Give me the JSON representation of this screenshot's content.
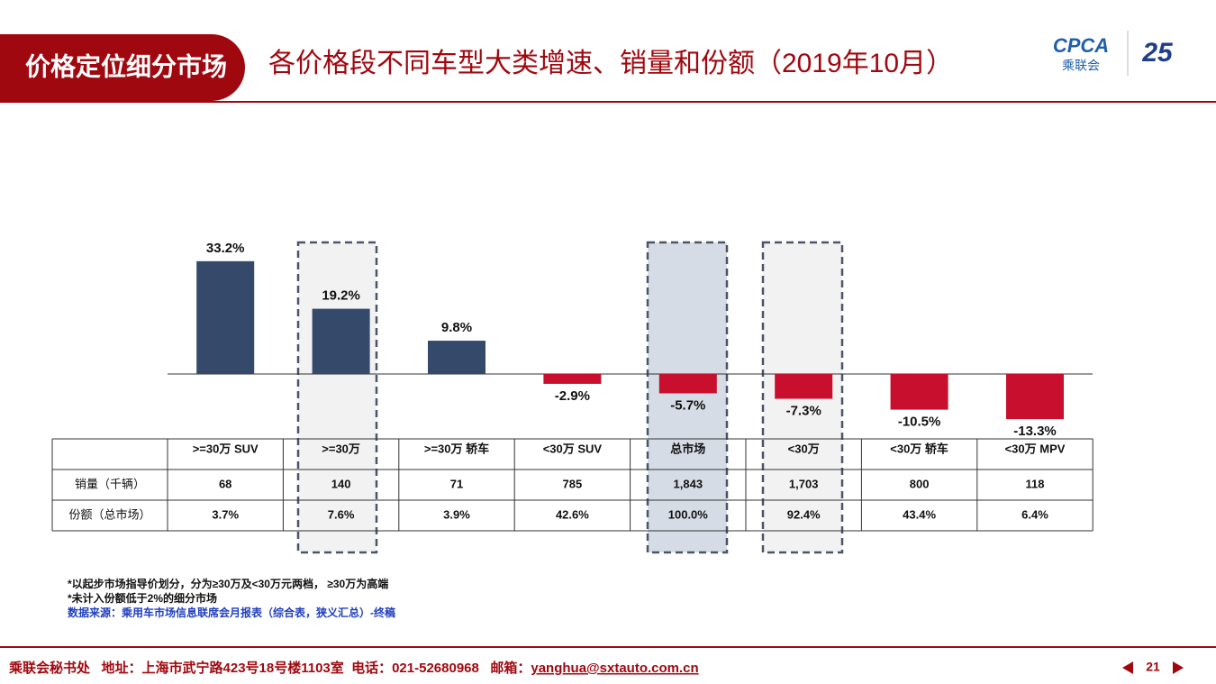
{
  "header": {
    "tab": "价格定位细分市场",
    "title": "各价格段不同车型大类增速、销量和份额（2019年10月）",
    "logo_text": "CPCA",
    "logo_sub": "乘联会"
  },
  "chart_data": {
    "type": "bar",
    "categories": [
      ">=30万 SUV",
      ">=30万",
      ">=30万 轿车",
      "<30万 SUV",
      "总市场",
      "<30万",
      "<30万 轿车",
      "<30万 MPV"
    ],
    "values": [
      33.2,
      19.2,
      9.8,
      -2.9,
      -5.7,
      -7.3,
      -10.5,
      -13.3
    ],
    "value_labels": [
      "33.2%",
      "19.2%",
      "9.8%",
      "-2.9%",
      "-5.7%",
      "-7.3%",
      "-10.5%",
      "-13.3%"
    ],
    "colors": {
      "positive": "#354a6b",
      "negative": "#c8102e"
    }
  },
  "table": {
    "rows": [
      {
        "label": "销量（千辆）",
        "cells": [
          "68",
          "140",
          "71",
          "785",
          "1,843",
          "1,703",
          "800",
          "118"
        ]
      },
      {
        "label": "份额（总市场）",
        "cells": [
          "3.7%",
          "7.6%",
          "3.9%",
          "42.6%",
          "100.0%",
          "92.4%",
          "43.4%",
          "6.4%"
        ]
      }
    ]
  },
  "notes": [
    "*以起步市场指导价划分，分为≥30万及<30万元两档， ≥30万为高端",
    "*未计入份额低于2%的细分市场",
    "数据来源：乘用车市场信息联席会月报表（综合表，狭义汇总）-终稿"
  ],
  "footer": {
    "text": "乘联会秘书处   地址：上海市武宁路423号18号楼1103室  电话：021-52680968   邮箱：",
    "email": "yanghua@sxtauto.com.cn",
    "page": "21"
  }
}
